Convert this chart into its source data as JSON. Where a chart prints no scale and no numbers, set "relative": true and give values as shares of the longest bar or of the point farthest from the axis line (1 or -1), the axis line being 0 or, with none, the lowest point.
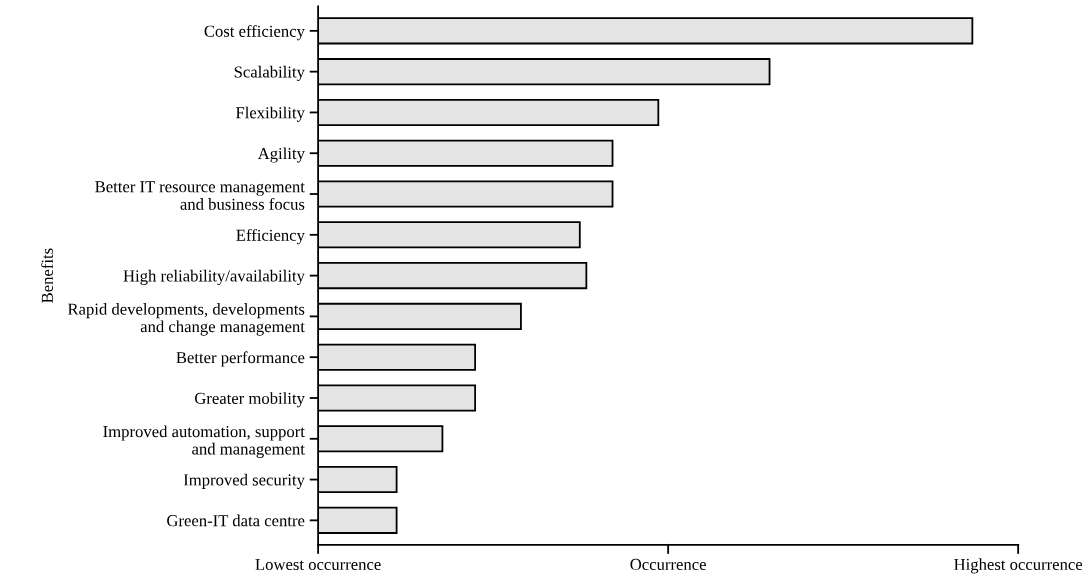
{
  "chart_data": {
    "type": "bar",
    "orientation": "horizontal",
    "relative": true,
    "ylabel": "Benefits",
    "categories": [
      "Cost efficiency",
      "Scalability",
      "Flexibility",
      "Agility",
      "Better IT resource management\nand business focus",
      "Efficiency",
      "High reliability/availability",
      "Rapid developments, developments\nand change management",
      "Better performance",
      "Greater mobility",
      "Improved automation, support\nand management",
      "Improved security",
      "Green-IT data centre"
    ],
    "values": [
      1,
      0.69,
      0.52,
      0.45,
      0.45,
      0.4,
      0.41,
      0.31,
      0.24,
      0.24,
      0.19,
      0.12,
      0.12
    ],
    "color": "#e4e4e4",
    "annotations": [
      "Lowest occurrence",
      "Occurrence",
      "Highest occurrence"
    ],
    "grid": false,
    "legend": false
  }
}
